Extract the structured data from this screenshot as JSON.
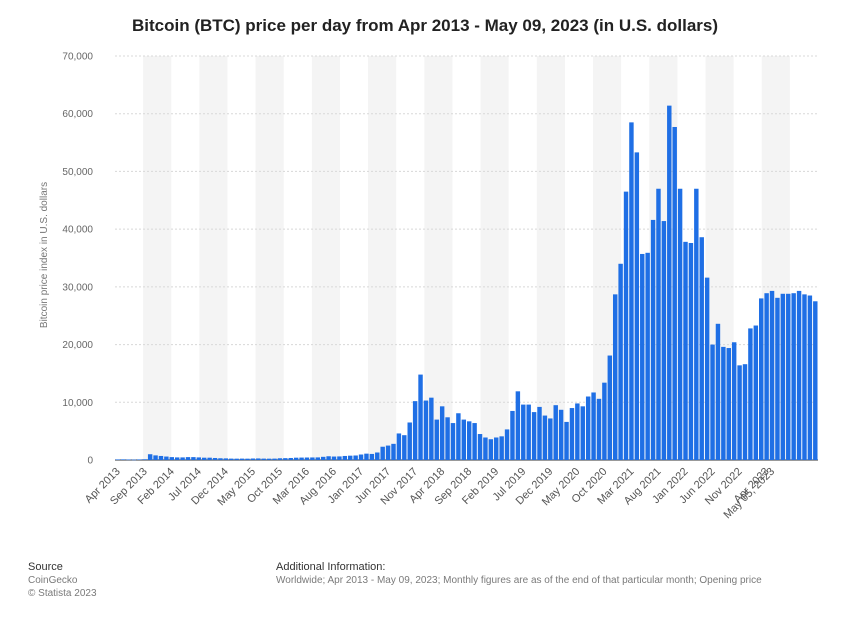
{
  "chart_data": {
    "type": "bar",
    "title": "Bitcoin (BTC) price per day from Apr 2013 - May 09, 2023 (in U.S. dollars)",
    "xlabel": "",
    "ylabel": "Bitcoin price index in U.S. dollars",
    "ylim": [
      0,
      70000
    ],
    "yticks": [
      "0",
      "10,000",
      "20,000",
      "30,000",
      "40,000",
      "50,000",
      "60,000",
      "70,000"
    ],
    "grid": true,
    "bar_color": "#1f6fe5",
    "band_color": "#f4f4f4",
    "xtick_labels": [
      {
        "index": 0,
        "label": "Apr 2013"
      },
      {
        "index": 5,
        "label": "Sep 2013"
      },
      {
        "index": 10,
        "label": "Feb 2014"
      },
      {
        "index": 15,
        "label": "Jul 2014"
      },
      {
        "index": 20,
        "label": "Dec 2014"
      },
      {
        "index": 25,
        "label": "May 2015"
      },
      {
        "index": 30,
        "label": "Oct 2015"
      },
      {
        "index": 35,
        "label": "Mar 2016"
      },
      {
        "index": 40,
        "label": "Aug 2016"
      },
      {
        "index": 45,
        "label": "Jan 2017"
      },
      {
        "index": 50,
        "label": "Jun 2017"
      },
      {
        "index": 55,
        "label": "Nov 2017"
      },
      {
        "index": 60,
        "label": "Apr 2018"
      },
      {
        "index": 65,
        "label": "Sep 2018"
      },
      {
        "index": 70,
        "label": "Feb 2019"
      },
      {
        "index": 75,
        "label": "Jul 2019"
      },
      {
        "index": 80,
        "label": "Dec 2019"
      },
      {
        "index": 85,
        "label": "May 2020"
      },
      {
        "index": 90,
        "label": "Oct 2020"
      },
      {
        "index": 95,
        "label": "Mar 2021"
      },
      {
        "index": 100,
        "label": "Aug 2021"
      },
      {
        "index": 105,
        "label": "Jan 2022"
      },
      {
        "index": 110,
        "label": "Jun 2022"
      },
      {
        "index": 115,
        "label": "Nov 2022"
      },
      {
        "index": 120,
        "label": "Apr 2023"
      },
      {
        "index": 121,
        "label": "May 05, 2023"
      }
    ],
    "values": [
      100,
      110,
      90,
      70,
      100,
      130,
      1000,
      800,
      700,
      600,
      500,
      450,
      450,
      500,
      500,
      450,
      400,
      400,
      350,
      300,
      280,
      240,
      230,
      240,
      230,
      260,
      270,
      240,
      230,
      240,
      300,
      320,
      350,
      400,
      420,
      430,
      440,
      450,
      550,
      650,
      600,
      620,
      700,
      750,
      780,
      950,
      1100,
      1050,
      1300,
      2300,
      2500,
      2800,
      4600,
      4300,
      6500,
      10200,
      14800,
      10300,
      10800,
      7000,
      9300,
      7400,
      6400,
      8100,
      7000,
      6700,
      6400,
      4500,
      3900,
      3600,
      3900,
      4100,
      5300,
      8500,
      11900,
      9600,
      9600,
      8300,
      9200,
      7700,
      7200,
      9500,
      8700,
      6600,
      9000,
      9800,
      9300,
      11000,
      11700,
      10600,
      13400,
      18100,
      28700,
      34000,
      46500,
      58500,
      53300,
      35700,
      35900,
      41600,
      47000,
      41400,
      61400,
      57700,
      47000,
      37800,
      37600,
      47000,
      38600,
      31600,
      20000,
      23600,
      19600,
      19400,
      20400,
      16400,
      16600,
      22800,
      23300,
      28000,
      28900,
      29300,
      28100,
      28800,
      28800,
      28900,
      29300,
      28700,
      28500,
      27500
    ]
  },
  "footer": {
    "source_heading": "Source",
    "source_name": "CoinGecko",
    "copyright": "© Statista 2023",
    "info_heading": "Additional Information:",
    "info_text": "Worldwide; Apr 2013 - May 09, 2023; Monthly figures are as of the end of that particular month; Opening price"
  }
}
